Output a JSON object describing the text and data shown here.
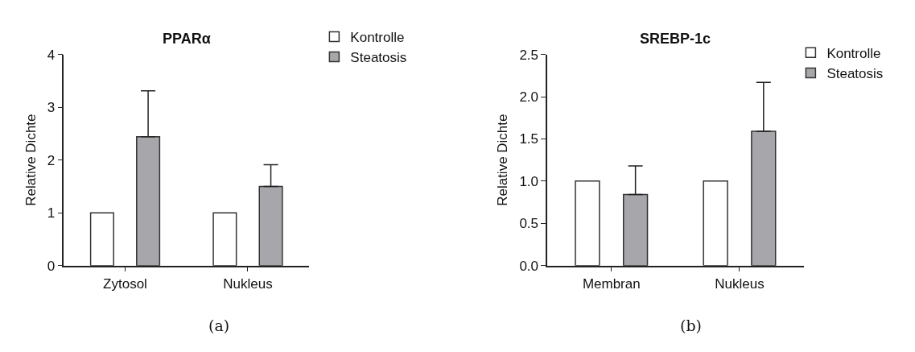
{
  "chart_data": [
    {
      "type": "bar",
      "title": "PPARα",
      "ylabel": "Relative Dichte",
      "categories": [
        "Zytosol",
        "Nukleus"
      ],
      "series": [
        {
          "name": "Kontrolle",
          "color": "#ffffff",
          "values": [
            1,
            1
          ],
          "errors": [
            null,
            null
          ]
        },
        {
          "name": "Steatosis",
          "color": "#a7a7ab",
          "values": [
            2.44,
            1.5
          ],
          "errors": [
            [
              2.44,
              3.31
            ],
            [
              1.5,
              1.91
            ]
          ]
        }
      ],
      "ylim": [
        0,
        4
      ],
      "yticks": [
        0,
        1,
        2,
        3,
        4
      ],
      "legend": "top right",
      "annotations": [
        "(a)"
      ]
    },
    {
      "type": "bar",
      "title": "SREBP-1c",
      "ylabel": "Relative Dichte",
      "categories": [
        "Membran",
        "Nukleus"
      ],
      "series": [
        {
          "name": "Kontrolle",
          "color": "#ffffff",
          "values": [
            1,
            1
          ],
          "errors": [
            null,
            null
          ]
        },
        {
          "name": "Steatosis",
          "color": "#a7a7ab",
          "values": [
            0.84,
            1.59
          ],
          "errors": [
            [
              0.84,
              1.18
            ],
            [
              1.59,
              2.17
            ]
          ]
        }
      ],
      "ylim": [
        0,
        2.5
      ],
      "yticks": [
        {
          "value": 0,
          "label": "0.0"
        },
        {
          "value": 0.5,
          "label": "0.5"
        },
        {
          "value": 1,
          "label": "1.0"
        },
        {
          "value": 1.5,
          "label": "1.5"
        },
        {
          "value": 2,
          "label": "2.0"
        },
        {
          "value": 2.5,
          "label": "2.5"
        }
      ],
      "legend": "top right",
      "annotations": [
        "(b)"
      ]
    }
  ]
}
